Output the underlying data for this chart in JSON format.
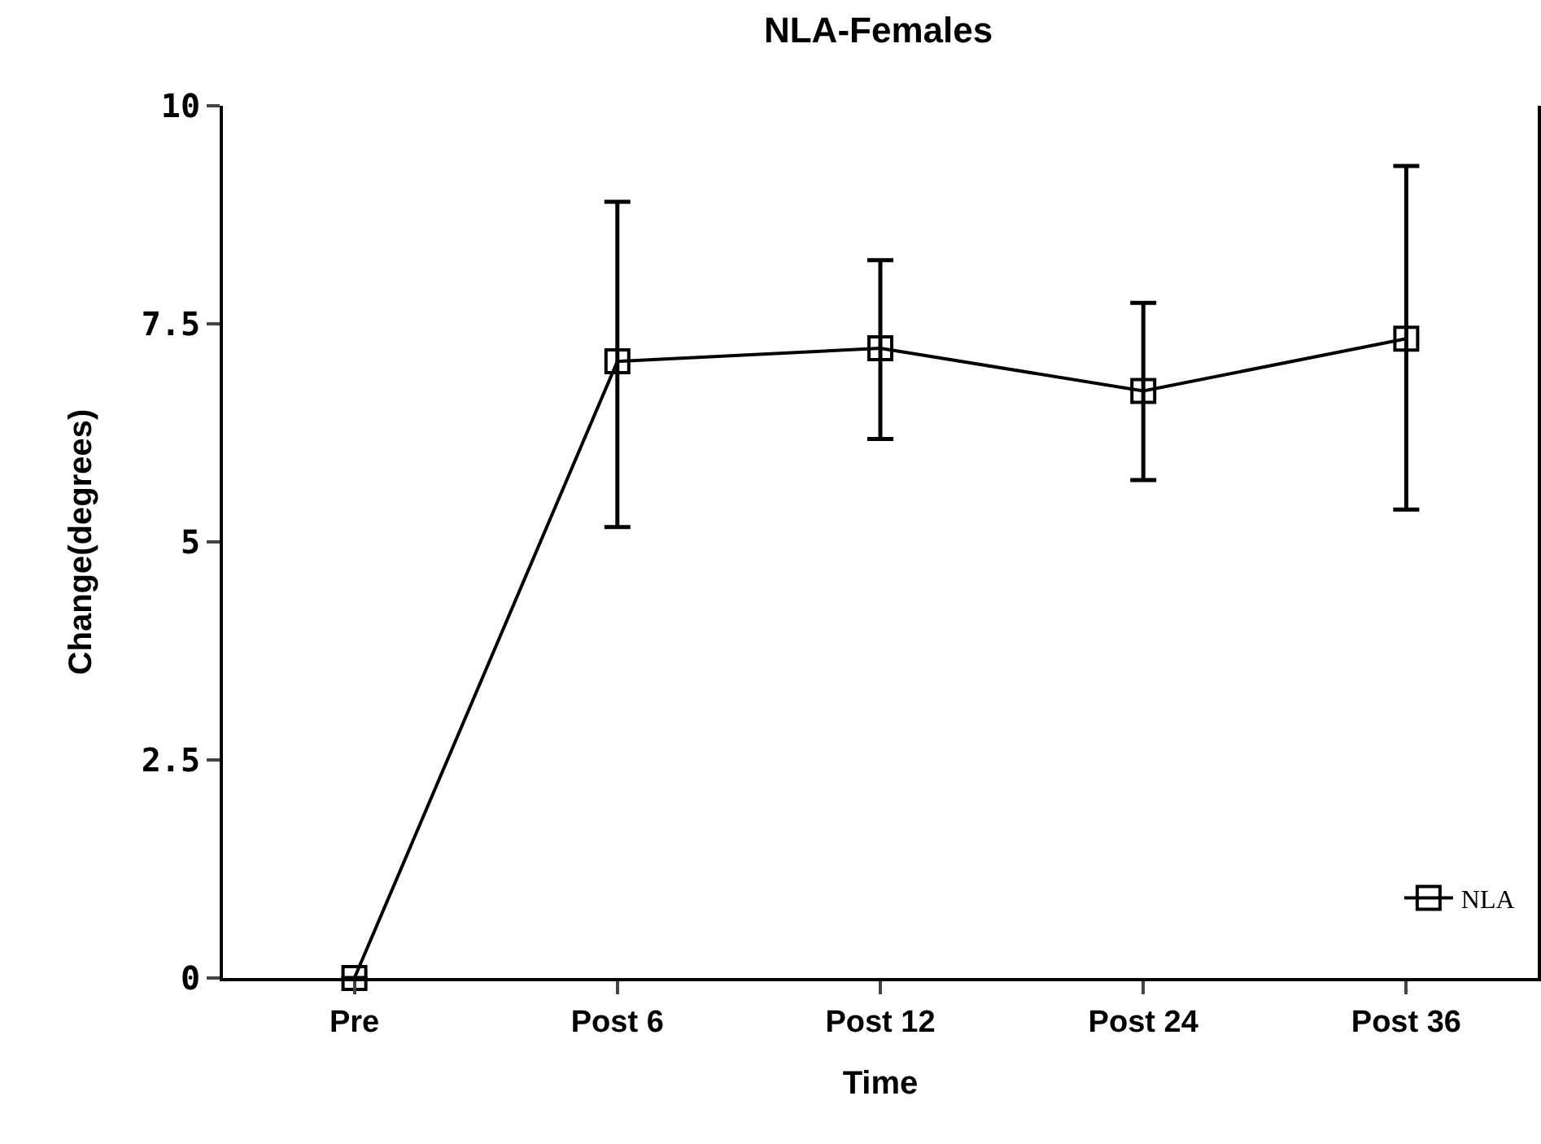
{
  "chart_data": {
    "type": "line",
    "title": "NLA-Females",
    "xlabel": "Time",
    "ylabel": "Change(degrees)",
    "categories": [
      "Pre",
      "Post 6",
      "Post 12",
      "Post 24",
      "Post 36"
    ],
    "series": [
      {
        "name": "NLA",
        "color": "#000000",
        "values": [
          0,
          7.07,
          7.22,
          6.73,
          7.33
        ],
        "errors": [
          null,
          [
            5.17,
            8.9
          ],
          [
            6.18,
            8.23
          ],
          [
            5.71,
            7.74
          ],
          [
            5.37,
            9.31
          ]
        ]
      }
    ],
    "ylim": [
      0,
      10
    ],
    "yticks": [
      0,
      2.5,
      5,
      7.5,
      10
    ],
    "grid": false,
    "legend": "bottom right",
    "marker": "square",
    "line_style": "solid"
  }
}
